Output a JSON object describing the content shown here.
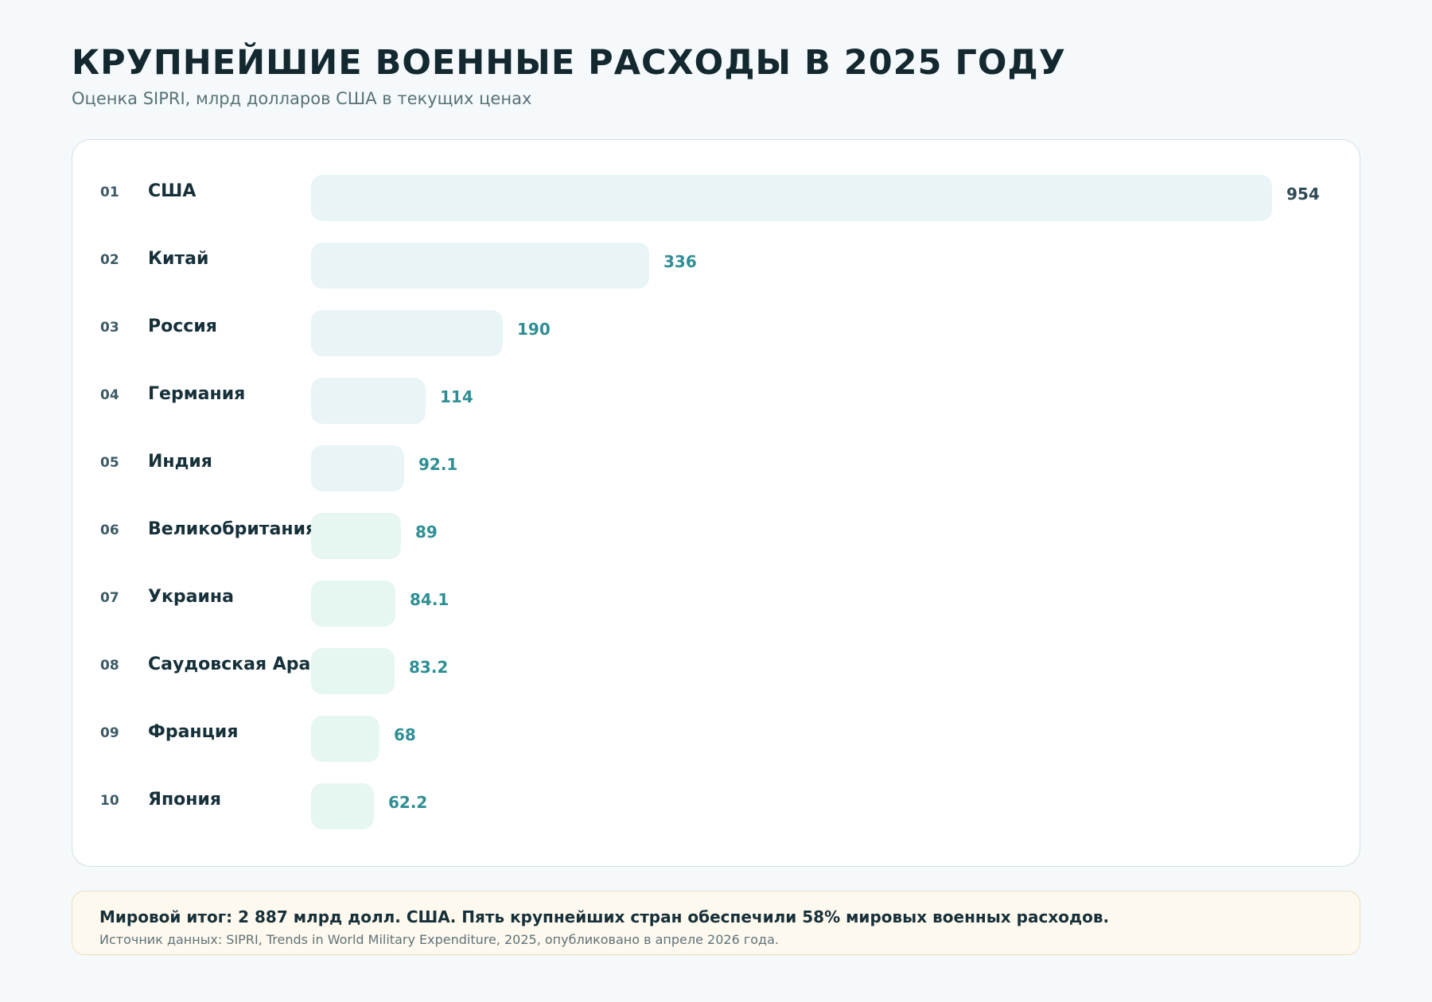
{
  "title": "КРУПНЕЙШИЕ ВОЕННЫЕ РАСХОДЫ В 2025 ГОДУ",
  "subtitle": "Оценка SIPRI, млрд долларов США в текущих ценах",
  "colors": {
    "bar_top": "#e8f4f6",
    "bar_rest": "#e6f6f1",
    "value_first": "#2e4a56",
    "value_other": "#2f8e94"
  },
  "chart_data": {
    "type": "bar",
    "orientation": "horizontal",
    "title": "КРУПНЕЙШИЕ ВОЕННЫЕ РАСХОДЫ В 2025 ГОДУ",
    "subtitle": "Оценка SIPRI, млрд долларов США в текущих ценах",
    "xlim": [
      0,
      954
    ],
    "grid": false,
    "ranks": [
      "01",
      "02",
      "03",
      "04",
      "05",
      "06",
      "07",
      "08",
      "09",
      "10"
    ],
    "categories": [
      "США",
      "Китай",
      "Россия",
      "Германия",
      "Индия",
      "Великобритания",
      "Украина",
      "Саудовская Аравия",
      "Франция",
      "Япония"
    ],
    "values": [
      954,
      336,
      190,
      114,
      92.1,
      89,
      84.1,
      83.2,
      68,
      62.2
    ],
    "value_labels": [
      "954",
      "336",
      "190",
      "114",
      "92.1",
      "89",
      "84.1",
      "83.2",
      "68",
      "62.2"
    ]
  },
  "footer": {
    "summary": "Мировой итог: 2 887 млрд долл. США. Пять крупнейших стран обеспечили 58% мировых военных расходов.",
    "source": "Источник данных: SIPRI, Trends in World Military Expenditure, 2025, опубликовано в апреле 2026 года."
  }
}
